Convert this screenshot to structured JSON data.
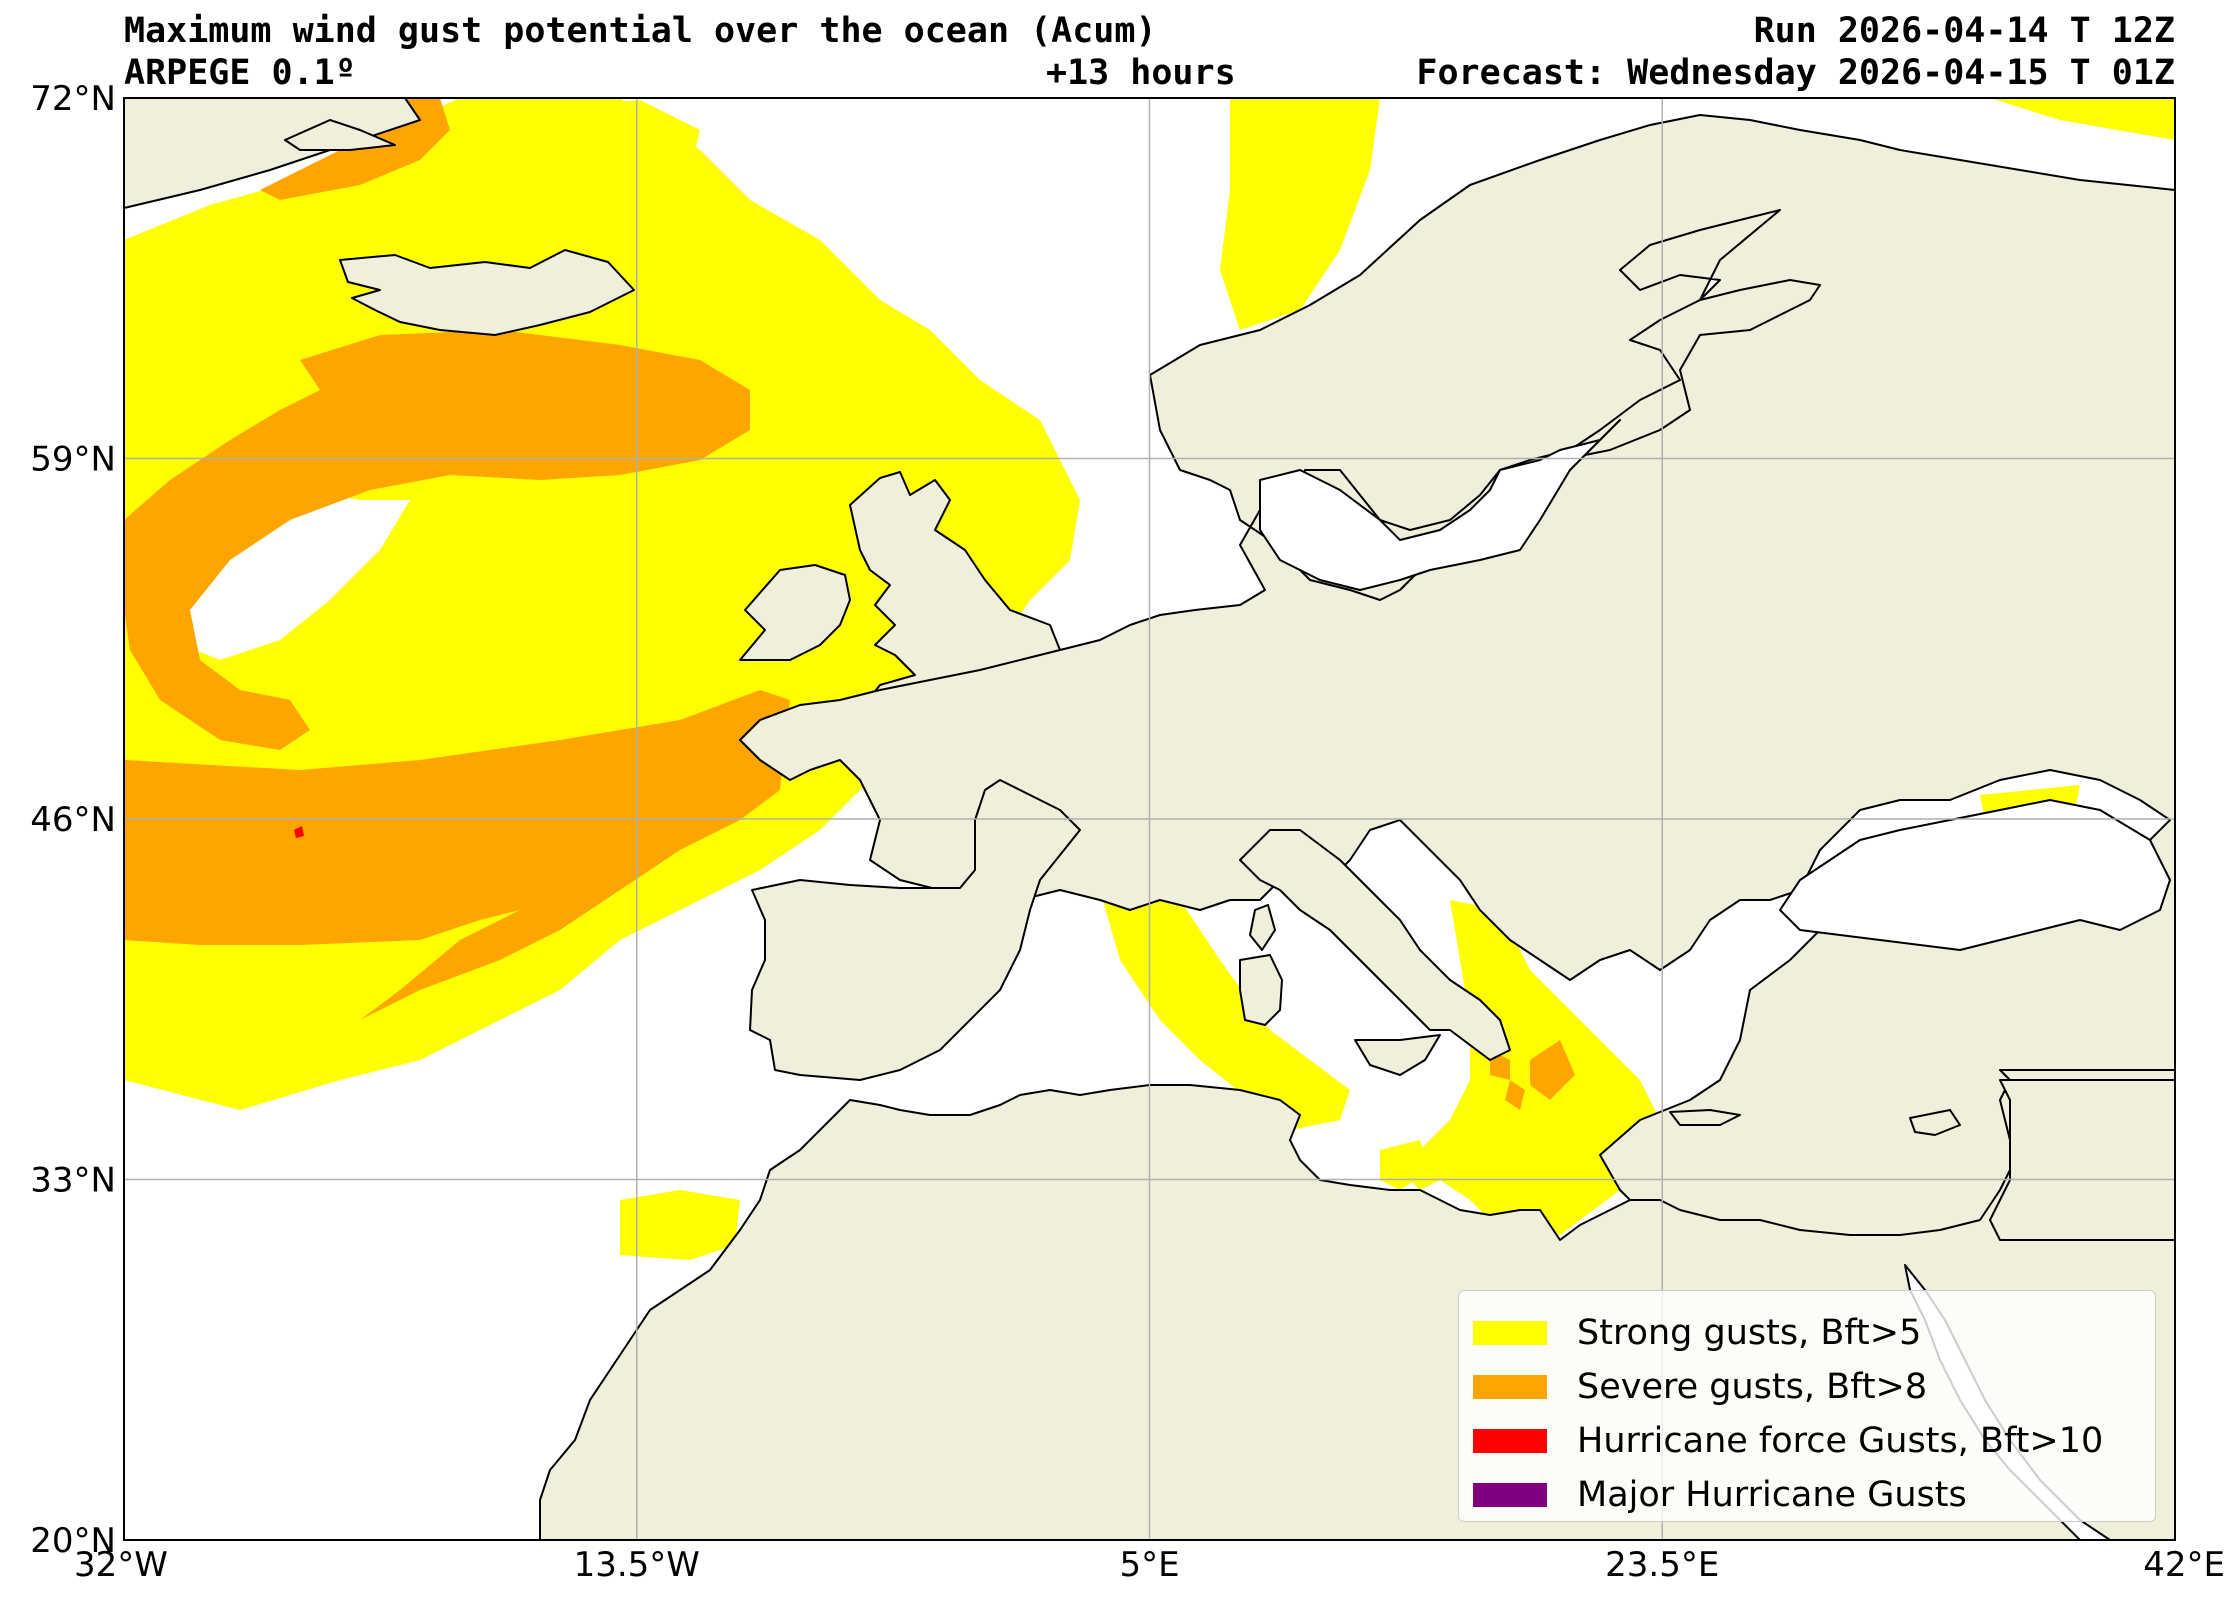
{
  "header": {
    "title": "Maximum wind gust potential over the ocean (Acum)",
    "run": "Run 2026-04-14 T 12Z",
    "model": "ARPEGE 0.1º",
    "lead": "+13 hours",
    "forecast": "Forecast: Wednesday 2026-04-15 T 01Z"
  },
  "axes": {
    "lon_range": [
      -32,
      42
    ],
    "lat_range": [
      20,
      72
    ],
    "x_ticks": [
      {
        "value": -32,
        "label": "32°W"
      },
      {
        "value": -13.5,
        "label": "13.5°W"
      },
      {
        "value": 5,
        "label": "5°E"
      },
      {
        "value": 23.5,
        "label": "23.5°E"
      },
      {
        "value": 42,
        "label": "42°E"
      }
    ],
    "y_ticks": [
      {
        "value": 20,
        "label": "20°N"
      },
      {
        "value": 33,
        "label": "33°N"
      },
      {
        "value": 46,
        "label": "46°N"
      },
      {
        "value": 59,
        "label": "59°N"
      },
      {
        "value": 72,
        "label": "72°N"
      }
    ],
    "grid": true
  },
  "legend": {
    "placement": "lower-right",
    "items": [
      {
        "label": "Strong gusts, Bft>5",
        "color": "#ffff00"
      },
      {
        "label": "Severe gusts, Bft>8",
        "color": "#ffa500"
      },
      {
        "label": "Hurricane force Gusts, Bft>10",
        "color": "#ff0000"
      },
      {
        "label": "Major Hurricane Gusts",
        "color": "#800080"
      }
    ]
  },
  "colors": {
    "land": "#efefdc",
    "ocean": "#ffffff",
    "coast": "#000000",
    "grid": "#b0b0b0"
  }
}
